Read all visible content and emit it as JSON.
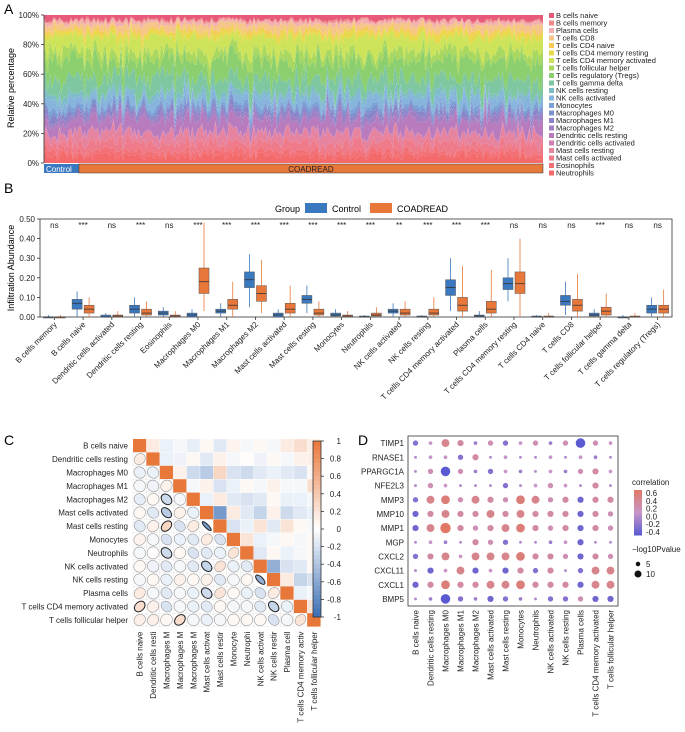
{
  "colors": {
    "control": "#3a78c0",
    "coadread": "#e8773a",
    "cell_palette": [
      "#e85a7a",
      "#f08a8a",
      "#f3b0b0",
      "#f6c58a",
      "#f4cc55",
      "#e8d94a",
      "#cde35a",
      "#a9d860",
      "#8ccf6e",
      "#7ec7a0",
      "#7dbcc8",
      "#86b4dd",
      "#7aa2d6",
      "#7b93cf",
      "#8a85c9",
      "#a07fc4",
      "#b87cbe",
      "#d07fb4",
      "#e6839e",
      "#ef7b8a",
      "#f26f75",
      "#f46a6a"
    ]
  },
  "panel_labels": {
    "a": "A",
    "b": "B",
    "c": "C",
    "d": "D"
  },
  "chart_data": [
    {
      "panel": "A",
      "type": "area",
      "ylabel": "Relative percentage",
      "yticks": [
        "0%",
        "20%",
        "40%",
        "60%",
        "80%",
        "100%"
      ],
      "groups": [
        {
          "name": "Control",
          "fraction": 0.07
        },
        {
          "name": "COADREAD",
          "fraction": 0.93
        }
      ],
      "legend": [
        "B cells naive",
        "B cells memory",
        "Plasma cells",
        "T cells CD8",
        "T cells CD4 naive",
        "T cells CD4 memory resting",
        "T cells CD4 memory activated",
        "T cells follicular helper",
        "T cells regulatory (Tregs)",
        "T cells gamma delta",
        "NK cells resting",
        "NK cells activated",
        "Monocytes",
        "Macrophages M0",
        "Macrophages M1",
        "Macrophages M2",
        "Dendritic cells resting",
        "Dendritic cells activated",
        "Mast cells resting",
        "Mast cells activated",
        "Eosinophils",
        "Neutrophils"
      ]
    },
    {
      "panel": "B",
      "type": "box",
      "legend_title": "Group",
      "series": [
        "Control",
        "COADREAD"
      ],
      "ylabel": "Infiltration Abundance",
      "ylim": [
        0,
        0.5
      ],
      "yticks": [
        "0.00",
        "0.10",
        "0.20",
        "0.30",
        "0.40",
        "0.50"
      ],
      "categories": [
        "B cells memory",
        "B cells naive",
        "Dendritic cells activated",
        "Dendritic cells resting",
        "Eosinophils",
        "Macrophages M0",
        "Macrophages M1",
        "Macrophages M2",
        "Mast cells activated",
        "Mast cells resting",
        "Monocytes",
        "Neutrophils",
        "NK cells activated",
        "NK cells resting",
        "T cells CD4 memory activated",
        "Plasma cells",
        "T cells CD4 memory resting",
        "T cells CD4 naive",
        "T cells CD8",
        "T cells follicular helper",
        "T cells gamma delta",
        "T cells regulatory (Tregs)"
      ],
      "significance": [
        "ns",
        "***",
        "ns",
        "***",
        "ns",
        "***",
        "***",
        "***",
        "***",
        "***",
        "***",
        "***",
        "**",
        "***",
        "***",
        "***",
        "ns",
        "ns",
        "ns",
        "***",
        "ns",
        "ns"
      ],
      "control": [
        [
          0,
          0,
          0,
          0,
          0.01
        ],
        [
          0,
          0.04,
          0.07,
          0.09,
          0.13
        ],
        [
          0,
          0,
          0,
          0.01,
          0.02
        ],
        [
          0,
          0.02,
          0.04,
          0.06,
          0.1
        ],
        [
          0,
          0.01,
          0.02,
          0.03,
          0.05
        ],
        [
          0,
          0,
          0.01,
          0.02,
          0.04
        ],
        [
          0,
          0.02,
          0.03,
          0.04,
          0.07
        ],
        [
          0.05,
          0.15,
          0.19,
          0.23,
          0.32
        ],
        [
          0,
          0,
          0.01,
          0.02,
          0.04
        ],
        [
          0.02,
          0.07,
          0.09,
          0.11,
          0.16
        ],
        [
          0,
          0.005,
          0.01,
          0.02,
          0.04
        ],
        [
          0,
          0,
          0,
          0.005,
          0.01
        ],
        [
          0,
          0.02,
          0.03,
          0.04,
          0.07
        ],
        [
          0,
          0,
          0,
          0.005,
          0.01
        ],
        [
          0.03,
          0.11,
          0.15,
          0.19,
          0.3
        ],
        [
          0,
          0,
          0.005,
          0.01,
          0.03
        ],
        [
          0.08,
          0.14,
          0.17,
          0.2,
          0.3
        ],
        [
          0,
          0,
          0,
          0.005,
          0.01
        ],
        [
          0.01,
          0.06,
          0.08,
          0.11,
          0.18
        ],
        [
          0,
          0.005,
          0.01,
          0.02,
          0.04
        ],
        [
          0,
          0,
          0,
          0,
          0.01
        ],
        [
          0,
          0.02,
          0.04,
          0.06,
          0.1
        ]
      ],
      "coadread": [
        [
          0,
          0,
          0,
          0,
          0.01
        ],
        [
          0,
          0.02,
          0.04,
          0.06,
          0.1
        ],
        [
          0,
          0,
          0.005,
          0.01,
          0.03
        ],
        [
          0,
          0.01,
          0.02,
          0.04,
          0.08
        ],
        [
          0,
          0,
          0.005,
          0.01,
          0.03
        ],
        [
          0.03,
          0.12,
          0.18,
          0.25,
          0.48
        ],
        [
          0,
          0.04,
          0.06,
          0.09,
          0.18
        ],
        [
          0.02,
          0.08,
          0.12,
          0.16,
          0.29
        ],
        [
          0,
          0.02,
          0.04,
          0.07,
          0.16
        ],
        [
          0,
          0.01,
          0.02,
          0.04,
          0.08
        ],
        [
          0,
          0,
          0.005,
          0.01,
          0.03
        ],
        [
          0,
          0.005,
          0.01,
          0.02,
          0.05
        ],
        [
          0,
          0.01,
          0.02,
          0.04,
          0.08
        ],
        [
          0,
          0.01,
          0.02,
          0.04,
          0.1
        ],
        [
          0,
          0.03,
          0.06,
          0.1,
          0.26
        ],
        [
          0,
          0.02,
          0.04,
          0.08,
          0.24
        ],
        [
          0,
          0.12,
          0.17,
          0.23,
          0.4
        ],
        [
          0,
          0,
          0,
          0.005,
          0.02
        ],
        [
          0,
          0.03,
          0.06,
          0.09,
          0.22
        ],
        [
          0,
          0.01,
          0.03,
          0.05,
          0.12
        ],
        [
          0,
          0,
          0,
          0.005,
          0.02
        ],
        [
          0,
          0.02,
          0.04,
          0.06,
          0.14
        ]
      ]
    },
    {
      "panel": "C",
      "type": "heatmap",
      "labels": [
        "B cells naive",
        "Dendritic cells resting",
        "Macrophages M0",
        "Macrophages M1",
        "Macrophages M2",
        "Mast cells activated",
        "Mast cells resting",
        "Monocytes",
        "Neutrophils",
        "NK cells activated",
        "NK cells resting",
        "Plasma cells",
        "T cells CD4 memory activated",
        "T cells follicular helper"
      ],
      "x_tick_labels": [
        "B cells naive",
        "Dendritic cells resti",
        "Macrophages M",
        "Macrophages M",
        "Macrophages M",
        "Mast cells activat",
        "Mast cells restir",
        "Monocyte",
        "Neutrophi",
        "NK cells activat",
        "NK cells restir",
        "Plasma cell",
        "T cells CD4 memory activ",
        "T cells follicular helper"
      ],
      "colorbar_ticks": [
        "1",
        "0.8",
        "0.6",
        "0.4",
        "0.2",
        "0",
        "-0.2",
        "-0.4",
        "-0.6",
        "-0.8",
        "-1"
      ],
      "upper_values": [
        [
          0.15,
          -0.1,
          -0.05,
          -0.12,
          0.05,
          -0.15,
          0.08,
          -0.05,
          0.05,
          -0.05,
          0.15,
          0.25,
          0.12
        ],
        [
          -0.1,
          -0.08,
          0.05,
          -0.15,
          0.1,
          -0.05,
          0.02,
          -0.08,
          0.05,
          -0.05,
          0.1,
          0.12
        ],
        [
          0.1,
          -0.25,
          -0.35,
          0.3,
          -0.2,
          -0.25,
          -0.15,
          -0.1,
          -0.15,
          -0.2,
          0.05
        ],
        [
          -0.05,
          0.1,
          -0.2,
          -0.1,
          0.05,
          -0.05,
          0.1,
          -0.05,
          -0.05,
          0.25
        ],
        [
          -0.1,
          0.15,
          -0.15,
          -0.2,
          -0.15,
          0.05,
          -0.1,
          -0.1,
          -0.05
        ],
        [
          -0.7,
          0.15,
          -0.15,
          -0.3,
          0.1,
          -0.25,
          -0.15,
          -0.1
        ],
        [
          -0.2,
          -0.1,
          0.2,
          -0.15,
          0.2,
          0.05,
          -0.05
        ],
        [
          0.2,
          -0.1,
          -0.05,
          0.05,
          -0.05,
          0.05
        ],
        [
          -0.15,
          0.05,
          -0.1,
          -0.05,
          0.05
        ],
        [
          -0.55,
          -0.2,
          -0.15,
          0.05
        ],
        [
          0.15,
          -0.3,
          -0.2
        ],
        [
          -0.1,
          -0.05
        ],
        [
          0.2
        ]
      ]
    },
    {
      "panel": "D",
      "type": "scatter",
      "genes": [
        "TIMP1",
        "RNASE1",
        "PPARGC1A",
        "NFE2L3",
        "MMP3",
        "MMP10",
        "MMP1",
        "MGP",
        "CXCL2",
        "CXCL11",
        "CXCL1",
        "BMP5"
      ],
      "cells": [
        "B cells naive",
        "Dendritic cells resting",
        "Macrophages M0",
        "Macrophages M1",
        "Macrophages M2",
        "Mast cells activated",
        "Mast cells resting",
        "Monocytes",
        "Neutrophils",
        "NK cells activated",
        "NK cells resting",
        "Plasma cells",
        "T cells CD4 memory activated",
        "T cells follicular helper"
      ],
      "legend_title_color": "correlation",
      "color_ticks": [
        "0.6",
        "0.4",
        "0.2",
        "0.0",
        "-0.2",
        "-0.4"
      ],
      "legend_title_size": "−log10Pvalue",
      "size_ticks": [
        "5",
        "10"
      ],
      "correlation": [
        [
          -0.2,
          0.1,
          0.4,
          0.3,
          -0.1,
          0.2,
          -0.2,
          0.1,
          0.2,
          -0.1,
          0.2,
          -0.4,
          0.2,
          0.1
        ],
        [
          0.0,
          0.1,
          0.1,
          -0.2,
          0.3,
          0.0,
          0.1,
          0.0,
          0.0,
          0.1,
          0.0,
          0.1,
          -0.1,
          0.0
        ],
        [
          0.0,
          0.2,
          -0.4,
          0.2,
          -0.1,
          -0.2,
          0.1,
          -0.1,
          0.0,
          0.1,
          -0.1,
          0.2,
          0.3,
          0.1
        ],
        [
          0.0,
          0.2,
          0.1,
          0.0,
          0.0,
          0.0,
          -0.2,
          0.0,
          0.1,
          0.2,
          0.1,
          0.0,
          0.3,
          0.0
        ],
        [
          -0.2,
          0.4,
          0.5,
          0.2,
          0.4,
          0.3,
          0.2,
          0.5,
          0.4,
          0.2,
          0.3,
          -0.3,
          0.3,
          0.3
        ],
        [
          -0.3,
          0.3,
          0.4,
          0.3,
          0.3,
          0.4,
          0.3,
          0.4,
          0.3,
          0.3,
          0.3,
          -0.3,
          0.3,
          0.2
        ],
        [
          -0.3,
          0.4,
          0.6,
          0.3,
          0.2,
          0.3,
          0.4,
          0.5,
          0.3,
          0.2,
          0.3,
          -0.3,
          0.3,
          0.2
        ],
        [
          0.0,
          0.1,
          -0.1,
          0.0,
          0.3,
          0.2,
          -0.2,
          0.0,
          0.0,
          -0.1,
          0.1,
          -0.3,
          0.0,
          0.0
        ],
        [
          -0.2,
          0.3,
          0.4,
          0.1,
          0.4,
          0.4,
          0.4,
          0.5,
          0.3,
          0.3,
          0.2,
          -0.3,
          0.3,
          0.2
        ],
        [
          0.0,
          -0.3,
          0.1,
          0.4,
          -0.3,
          0.1,
          -0.3,
          0.3,
          -0.2,
          0.3,
          0.0,
          -0.2,
          0.4,
          0.4
        ],
        [
          -0.3,
          0.3,
          0.5,
          0.3,
          0.3,
          0.4,
          0.4,
          0.5,
          0.3,
          0.3,
          0.3,
          -0.3,
          0.4,
          0.4
        ],
        [
          0.0,
          -0.1,
          -0.4,
          -0.2,
          -0.1,
          -0.3,
          -0.2,
          -0.1,
          0.0,
          -0.2,
          -0.2,
          0.2,
          -0.3,
          -0.3
        ]
      ],
      "neglog10p": [
        [
          4,
          2,
          7,
          5,
          2,
          4,
          4,
          2,
          4,
          2,
          4,
          9,
          4,
          2
        ],
        [
          1,
          2,
          2,
          4,
          5,
          1,
          2,
          1,
          1,
          2,
          1,
          2,
          2,
          1
        ],
        [
          1,
          4,
          9,
          4,
          2,
          4,
          2,
          2,
          1,
          2,
          2,
          4,
          5,
          2
        ],
        [
          1,
          4,
          2,
          1,
          1,
          1,
          4,
          1,
          2,
          4,
          2,
          1,
          5,
          1
        ],
        [
          4,
          7,
          8,
          4,
          7,
          5,
          4,
          8,
          7,
          4,
          5,
          5,
          5,
          5
        ],
        [
          5,
          5,
          7,
          5,
          5,
          7,
          5,
          7,
          5,
          5,
          5,
          5,
          5,
          4
        ],
        [
          5,
          7,
          10,
          5,
          4,
          5,
          7,
          8,
          5,
          4,
          5,
          5,
          5,
          4
        ],
        [
          1,
          2,
          2,
          1,
          5,
          4,
          4,
          1,
          1,
          2,
          2,
          5,
          1,
          1
        ],
        [
          4,
          5,
          7,
          2,
          7,
          7,
          7,
          8,
          5,
          5,
          4,
          5,
          5,
          4
        ],
        [
          1,
          5,
          2,
          7,
          5,
          2,
          5,
          5,
          4,
          5,
          1,
          4,
          7,
          7
        ],
        [
          5,
          5,
          8,
          5,
          5,
          7,
          7,
          8,
          5,
          5,
          5,
          5,
          7,
          7
        ],
        [
          1,
          2,
          9,
          4,
          2,
          5,
          4,
          2,
          1,
          4,
          4,
          4,
          5,
          5
        ]
      ]
    }
  ]
}
